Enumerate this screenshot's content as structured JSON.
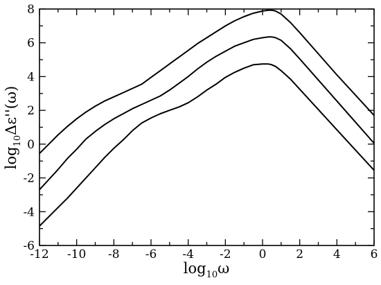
{
  "chart_data": {
    "type": "line",
    "xlabel": "log10ω",
    "xlabel_main": "log",
    "xlabel_sub": "10",
    "xlabel_sym": "ω",
    "ylabel": "log10Δε''(ω)",
    "ylabel_main": "log",
    "ylabel_sub": "10",
    "ylabel_sym": "Δε''(ω)",
    "xlim": [
      -12,
      6
    ],
    "ylim": [
      -6,
      8
    ],
    "xticks": [
      -12,
      -10,
      -8,
      -6,
      -4,
      -2,
      0,
      2,
      4,
      6
    ],
    "yticks": [
      -6,
      -4,
      -2,
      0,
      2,
      4,
      6,
      8
    ],
    "grid": false,
    "series": [
      {
        "x": [
          -12,
          -11.5,
          -11,
          -10.5,
          -10,
          -9.5,
          -9,
          -8.5,
          -8,
          -7.5,
          -7,
          -6.5,
          -6,
          -5.5,
          -5,
          -4.5,
          -4,
          -3.5,
          -3,
          -2.5,
          -2,
          -1.5,
          -1,
          -0.5,
          0,
          0.3,
          0.5,
          0.7,
          1,
          1.5,
          2,
          3,
          4,
          5,
          6
        ],
        "values": [
          -0.55,
          0.0,
          0.55,
          1.05,
          1.5,
          1.9,
          2.25,
          2.55,
          2.8,
          3.05,
          3.3,
          3.55,
          3.95,
          4.35,
          4.75,
          5.15,
          5.55,
          5.95,
          6.3,
          6.65,
          7.0,
          7.3,
          7.55,
          7.75,
          7.88,
          7.93,
          7.93,
          7.88,
          7.7,
          7.2,
          6.6,
          5.35,
          4.1,
          2.9,
          1.7
        ]
      },
      {
        "x": [
          -12,
          -11.5,
          -11,
          -10.5,
          -10,
          -9.5,
          -9,
          -8.5,
          -8,
          -7.5,
          -7,
          -6.5,
          -6,
          -5.5,
          -5,
          -4.5,
          -4,
          -3.5,
          -3,
          -2.5,
          -2,
          -1.5,
          -1,
          -0.5,
          0,
          0.3,
          0.5,
          0.7,
          1,
          1.5,
          2,
          3,
          4,
          5,
          6
        ],
        "values": [
          -2.7,
          -2.1,
          -1.5,
          -0.85,
          -0.3,
          0.3,
          0.75,
          1.15,
          1.5,
          1.8,
          2.1,
          2.35,
          2.6,
          2.85,
          3.2,
          3.6,
          4.0,
          4.45,
          4.85,
          5.2,
          5.5,
          5.8,
          6.0,
          6.2,
          6.3,
          6.35,
          6.35,
          6.3,
          6.15,
          5.65,
          5.05,
          3.8,
          2.55,
          1.3,
          0.05
        ]
      },
      {
        "x": [
          -12,
          -11.5,
          -11,
          -10.5,
          -10,
          -9.5,
          -9,
          -8.5,
          -8,
          -7.5,
          -7,
          -6.5,
          -6,
          -5.5,
          -5,
          -4.5,
          -4,
          -3.5,
          -3,
          -2.5,
          -2,
          -1.5,
          -1,
          -0.5,
          0,
          0.3,
          0.5,
          0.7,
          1,
          1.5,
          2,
          3,
          4,
          5,
          6
        ],
        "values": [
          -4.85,
          -4.3,
          -3.75,
          -3.2,
          -2.6,
          -2.0,
          -1.4,
          -0.8,
          -0.25,
          0.25,
          0.8,
          1.25,
          1.55,
          1.8,
          2.0,
          2.2,
          2.45,
          2.8,
          3.2,
          3.55,
          3.95,
          4.25,
          4.5,
          4.7,
          4.75,
          4.75,
          4.7,
          4.6,
          4.35,
          3.85,
          3.25,
          2.05,
          0.85,
          -0.35,
          -1.55
        ]
      }
    ]
  }
}
